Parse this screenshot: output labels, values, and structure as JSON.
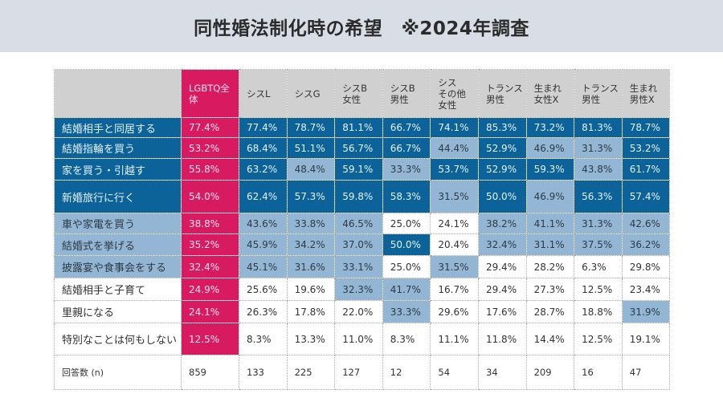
{
  "title": "同性婚法制化時の希望　※2024年調査",
  "colors": {
    "highlight": "#d81b60",
    "high": "#0b6399",
    "mid": "#92b6d4",
    "low": "#ffffff",
    "header": "#d0d0d0"
  },
  "chart_data": {
    "type": "table",
    "title": "同性婚法制化時の希望　※2024年調査",
    "columns": [
      "LGBTQ全体",
      "シスL",
      "シスG",
      "シスB\n女性",
      "シスB\n男性",
      "シス\nその他\n女性",
      "トランス\n男性",
      "生まれ\n女性X",
      "トランス\n男性",
      "生まれ\n男性X"
    ],
    "color_rule": "50%以上=濃青, 30%以上=淡青, 30%未満=白",
    "rows": [
      {
        "label": "結婚相手と同居する",
        "level": "dark",
        "values": [
          "77.4%",
          "77.4%",
          "78.7%",
          "81.1%",
          "66.7%",
          "74.1%",
          "85.3%",
          "73.2%",
          "81.3%",
          "78.7%"
        ]
      },
      {
        "label": "結婚指輪を買う",
        "level": "dark",
        "values": [
          "53.2%",
          "68.4%",
          "51.1%",
          "56.7%",
          "66.7%",
          "44.4%",
          "52.9%",
          "46.9%",
          "31.3%",
          "53.2%"
        ]
      },
      {
        "label": "家を買う・引越す",
        "level": "dark",
        "values": [
          "55.8%",
          "63.2%",
          "48.4%",
          "59.1%",
          "33.3%",
          "53.7%",
          "52.9%",
          "59.3%",
          "43.8%",
          "61.7%"
        ]
      },
      {
        "label": "新婚旅行に行く",
        "level": "dark",
        "values": [
          "54.0%",
          "62.4%",
          "57.3%",
          "59.8%",
          "58.3%",
          "31.5%",
          "50.0%",
          "46.9%",
          "56.3%",
          "57.4%"
        ]
      },
      {
        "label": "車や家電を買う",
        "level": "light",
        "values": [
          "38.8%",
          "43.6%",
          "33.8%",
          "46.5%",
          "25.0%",
          "24.1%",
          "38.2%",
          "41.1%",
          "31.3%",
          "42.6%"
        ]
      },
      {
        "label": "結婚式を挙げる",
        "level": "light",
        "values": [
          "35.2%",
          "45.9%",
          "34.2%",
          "37.0%",
          "50.0%",
          "20.4%",
          "32.4%",
          "31.1%",
          "37.5%",
          "36.2%"
        ]
      },
      {
        "label": "披露宴や食事会をする",
        "level": "light",
        "values": [
          "32.4%",
          "45.1%",
          "31.6%",
          "33.1%",
          "25.0%",
          "31.5%",
          "29.4%",
          "28.2%",
          "6.3%",
          "29.8%"
        ]
      },
      {
        "label": "結婚相手と子育て",
        "level": "white",
        "values": [
          "24.9%",
          "25.6%",
          "19.6%",
          "32.3%",
          "41.7%",
          "16.7%",
          "29.4%",
          "27.3%",
          "12.5%",
          "23.4%"
        ]
      },
      {
        "label": "里親になる",
        "level": "white",
        "values": [
          "24.1%",
          "26.3%",
          "17.8%",
          "22.0%",
          "33.3%",
          "29.6%",
          "17.6%",
          "28.7%",
          "18.8%",
          "31.9%"
        ]
      },
      {
        "label": "特別なことは何もしない",
        "level": "white",
        "values": [
          "12.5%",
          "8.3%",
          "13.3%",
          "11.0%",
          "8.3%",
          "11.1%",
          "11.8%",
          "14.4%",
          "12.5%",
          "19.1%"
        ]
      }
    ],
    "n_row": {
      "label": "回答数 (n)",
      "values": [
        "859",
        "133",
        "225",
        "127",
        "12",
        "54",
        "34",
        "209",
        "16",
        "47"
      ]
    }
  }
}
